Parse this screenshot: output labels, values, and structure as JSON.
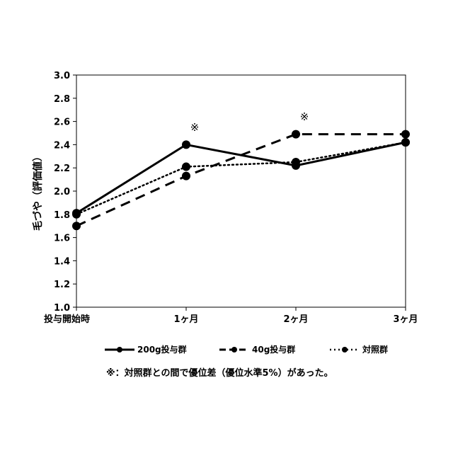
{
  "chart_data": {
    "type": "line",
    "ylabel": "毛づや（評価値）",
    "xlabel": "",
    "categories": [
      "投与開始時",
      "1ヶ月",
      "2ヶ月",
      "3ヶ月"
    ],
    "ylim": [
      1.0,
      3.0
    ],
    "yticks": [
      "1.0",
      "1.2",
      "1.4",
      "1.6",
      "1.8",
      "2.0",
      "2.2",
      "2.4",
      "2.6",
      "2.8",
      "3.0"
    ],
    "grid": false,
    "legend_position": "bottom",
    "series": [
      {
        "name": "200g投与群",
        "style": "solid",
        "color": "#000000",
        "values": [
          1.81,
          2.4,
          2.22,
          2.42
        ]
      },
      {
        "name": "40g投与群",
        "style": "dashed",
        "color": "#000000",
        "values": [
          1.7,
          2.13,
          2.49,
          2.49
        ]
      },
      {
        "name": "対照群",
        "style": "dotted",
        "color": "#000000",
        "values": [
          1.8,
          2.21,
          2.25,
          2.42
        ]
      }
    ],
    "annotations": [
      {
        "text": "※",
        "category": "1ヶ月",
        "y": 2.55
      },
      {
        "text": "※",
        "category": "2ヶ月",
        "y": 2.64
      }
    ],
    "footnote": "※：対照群との間で優位差（優位水準5%）があった。"
  }
}
